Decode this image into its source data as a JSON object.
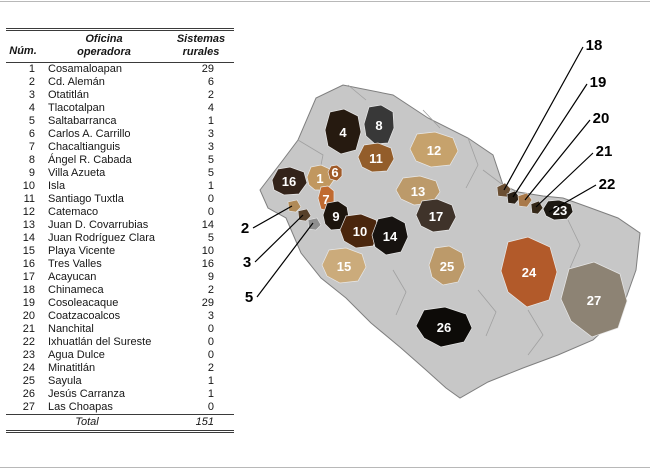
{
  "table": {
    "col_num": "Núm.",
    "col_office": [
      "Oficina",
      "operadora"
    ],
    "col_systems": [
      "Sistemas",
      "rurales"
    ],
    "rows": [
      [
        "1",
        "Cosamaloapan",
        "29"
      ],
      [
        "2",
        "Cd. Alemán",
        "6"
      ],
      [
        "3",
        "Otatitlán",
        "2"
      ],
      [
        "4",
        "Tlacotalpan",
        "4"
      ],
      [
        "5",
        "Saltabarranca",
        "1"
      ],
      [
        "6",
        "Carlos A. Carrillo",
        "3"
      ],
      [
        "7",
        "Chacaltianguis",
        "3"
      ],
      [
        "8",
        "Ángel R. Cabada",
        "5"
      ],
      [
        "9",
        "Villa Azueta",
        "5"
      ],
      [
        "10",
        "Isla",
        "1"
      ],
      [
        "11",
        "Santiago Tuxtla",
        "0"
      ],
      [
        "12",
        "Catemaco",
        "0"
      ],
      [
        "13",
        "Juan D. Covarrubias",
        "14"
      ],
      [
        "14",
        "Juan Rodríguez Clara",
        "5"
      ],
      [
        "15",
        "Playa Vicente",
        "10"
      ],
      [
        "16",
        "Tres Valles",
        "16"
      ],
      [
        "17",
        "Acayucan",
        "9"
      ],
      [
        "18",
        "Chinameca",
        "2"
      ],
      [
        "19",
        "Cosoleacaque",
        "29"
      ],
      [
        "20",
        "Coatzacoalcos",
        "3"
      ],
      [
        "21",
        "Nanchital",
        "0"
      ],
      [
        "22",
        "Ixhuatlán del Sureste",
        "0"
      ],
      [
        "23",
        "Agua Dulce",
        "0"
      ],
      [
        "24",
        "Minatitlán",
        "2"
      ],
      [
        "25",
        "Sayula",
        "1"
      ],
      [
        "26",
        "Jesús Carranza",
        "1"
      ],
      [
        "27",
        "Las Choapas",
        "0"
      ]
    ],
    "total_label": "Total",
    "total_value": "151"
  },
  "map": {
    "base_color": "#c7c7c7",
    "label_color": "#ffffff",
    "regions": [
      {
        "num": "1",
        "color": "#c1975f"
      },
      {
        "num": "4",
        "color": "#261a10"
      },
      {
        "num": "6",
        "color": "#a05a28"
      },
      {
        "num": "7",
        "color": "#c06a30"
      },
      {
        "num": "8",
        "color": "#383838"
      },
      {
        "num": "9",
        "color": "#1d150d"
      },
      {
        "num": "10",
        "color": "#4a260d"
      },
      {
        "num": "11",
        "color": "#935d2a"
      },
      {
        "num": "12",
        "color": "#c6a26c"
      },
      {
        "num": "13",
        "color": "#bc9a6a"
      },
      {
        "num": "14",
        "color": "#171310"
      },
      {
        "num": "15",
        "color": "#cbab7b"
      },
      {
        "num": "16",
        "color": "#33231a"
      },
      {
        "num": "17",
        "color": "#3f332a"
      },
      {
        "num": "23",
        "color": "#1c1812"
      },
      {
        "num": "24",
        "color": "#b25a2a"
      },
      {
        "num": "25",
        "color": "#bc9a6a"
      },
      {
        "num": "26",
        "color": "#0d0b08"
      },
      {
        "num": "27",
        "color": "#8d8374"
      }
    ],
    "callouts_right": [
      "18",
      "19",
      "20",
      "21",
      "22"
    ],
    "callouts_left": [
      "2",
      "3",
      "5"
    ]
  }
}
